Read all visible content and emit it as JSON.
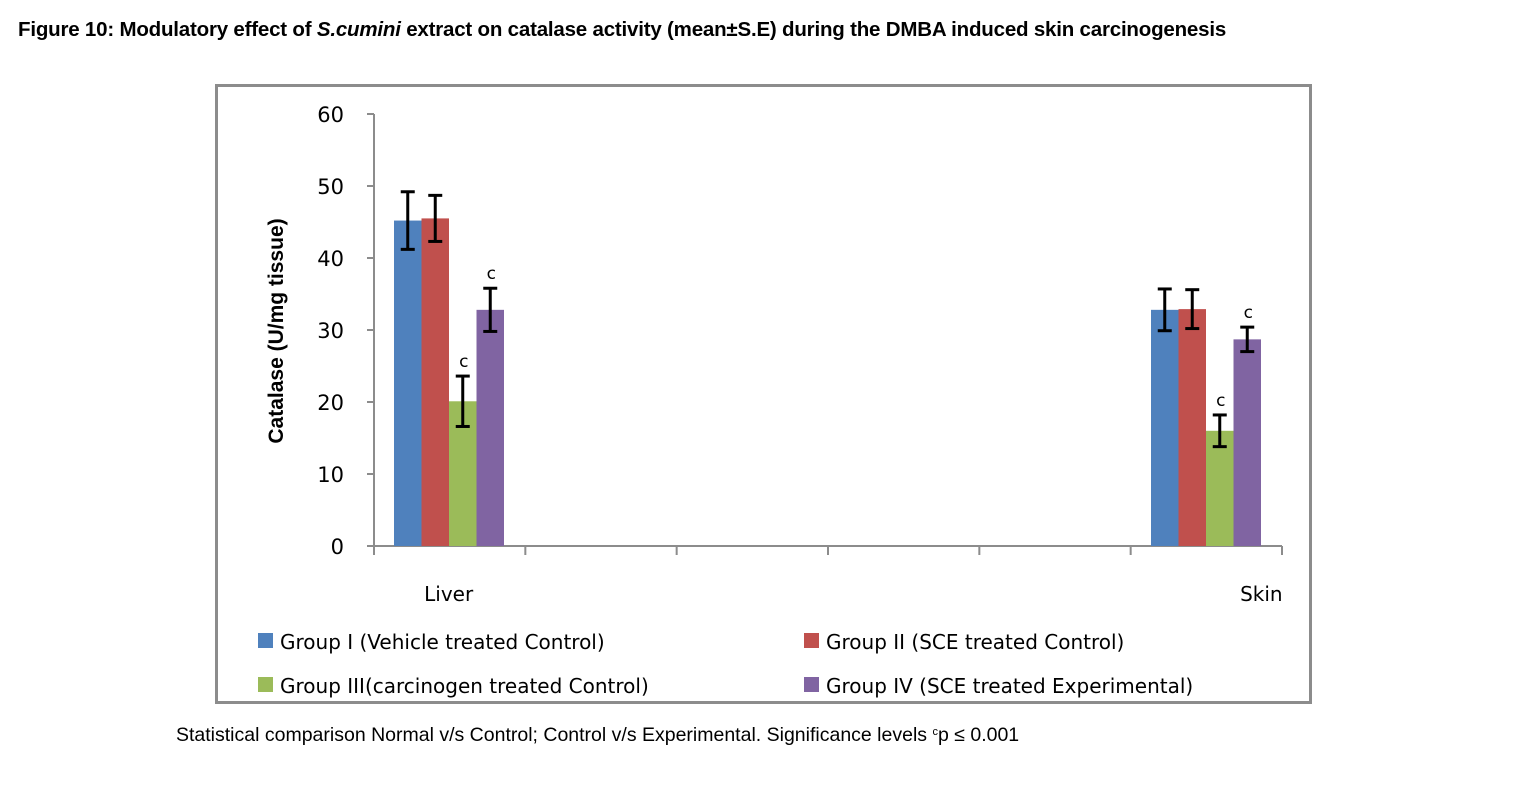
{
  "figure": {
    "title_prefix": "Figure 10: Modulatory effect of ",
    "title_italic": "S.cumini",
    "title_suffix": " extract on catalase activity (mean±S.E) during the DMBA induced skin carcinogenesis",
    "footnote_text": "Statistical comparison Normal v/s Control; Control v/s Experimental. Significance levels ",
    "footnote_sup": "c",
    "footnote_tail": "p ≤ 0.001"
  },
  "chart_data": {
    "type": "bar",
    "title": "",
    "xlabel": "",
    "ylabel": "Catalase (U/mg tissue)",
    "ylim": [
      0,
      60
    ],
    "yticks": [
      0,
      10,
      20,
      30,
      40,
      50,
      60
    ],
    "grid": false,
    "legend_position": "bottom",
    "categories": [
      "Liver",
      "",
      "",
      "",
      "",
      "Skin"
    ],
    "series": [
      {
        "name": "Group I (Vehicle treated Control)",
        "color": "#4f81bd",
        "values": [
          45.2,
          null,
          null,
          null,
          null,
          32.8
        ],
        "errors": [
          4.0,
          null,
          null,
          null,
          null,
          2.9
        ],
        "annotations": [
          "",
          "",
          "",
          "",
          "",
          ""
        ]
      },
      {
        "name": "Group II (SCE treated Control)",
        "color": "#c0504d",
        "values": [
          45.5,
          null,
          null,
          null,
          null,
          32.9
        ],
        "errors": [
          3.2,
          null,
          null,
          null,
          null,
          2.7
        ],
        "annotations": [
          "",
          "",
          "",
          "",
          "",
          ""
        ]
      },
      {
        "name": "Group III(carcinogen treated Control)",
        "color": "#9bbb59",
        "values": [
          20.1,
          null,
          null,
          null,
          null,
          16.0
        ],
        "errors": [
          3.5,
          null,
          null,
          null,
          null,
          2.2
        ],
        "annotations": [
          "c",
          "",
          "",
          "",
          "",
          "c"
        ]
      },
      {
        "name": "Group IV (SCE treated Experimental)",
        "color": "#8064a2",
        "values": [
          32.8,
          null,
          null,
          null,
          null,
          28.7
        ],
        "errors": [
          3.0,
          null,
          null,
          null,
          null,
          1.7
        ],
        "annotations": [
          "c",
          "",
          "",
          "",
          "",
          "c"
        ]
      }
    ]
  }
}
